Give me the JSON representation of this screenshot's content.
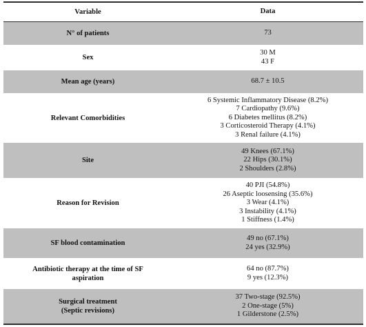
{
  "header": {
    "variable": "Variable",
    "data": "Data"
  },
  "rows": [
    {
      "label": [
        "N° of patients"
      ],
      "values": [
        "73"
      ]
    },
    {
      "label": [
        "Sex"
      ],
      "values": [
        "30 M",
        "43 F"
      ]
    },
    {
      "label": [
        "Mean age (years)"
      ],
      "values": [
        "68.7 ± 10.5"
      ]
    },
    {
      "label": [
        "Relevant Comorbidities"
      ],
      "values": [
        "6 Systemic Inflammatory Disease (8.2%)",
        "7 Cardiopathy (9.6%)",
        "6 Diabetes mellitus (8.2%)",
        "3 Corticosteroid Therapy (4.1%)",
        "3 Renal failure (4.1%)"
      ]
    },
    {
      "label": [
        "Site"
      ],
      "values": [
        "49 Knees (67.1%)",
        "22 Hips (30.1%)",
        "2 Shoulders (2.8%)"
      ]
    },
    {
      "label": [
        "Reason for Revision"
      ],
      "values": [
        "40 PJI (54.8%)",
        "26 Aseptic loosensing (35.6%)",
        "3 Wear (4.1%)",
        "3 Instability (4.1%)",
        "1 Stiffness (1.4%)"
      ]
    },
    {
      "label": [
        "SF blood contamination"
      ],
      "values": [
        "49 no (67.1%)",
        "24 yes (32.9%)"
      ]
    },
    {
      "label": [
        "Antibiotic therapy at the time of SF",
        "aspiration"
      ],
      "values": [
        "64 no (87.7%)",
        "9 yes (12.3%)"
      ]
    },
    {
      "label": [
        "Surgical treatment",
        "(Septic revisions)"
      ],
      "values": [
        "37 Two-stage (92.5%)",
        "2 One-stage (5%)",
        "1 Gilderstone (2.5%)"
      ]
    }
  ]
}
